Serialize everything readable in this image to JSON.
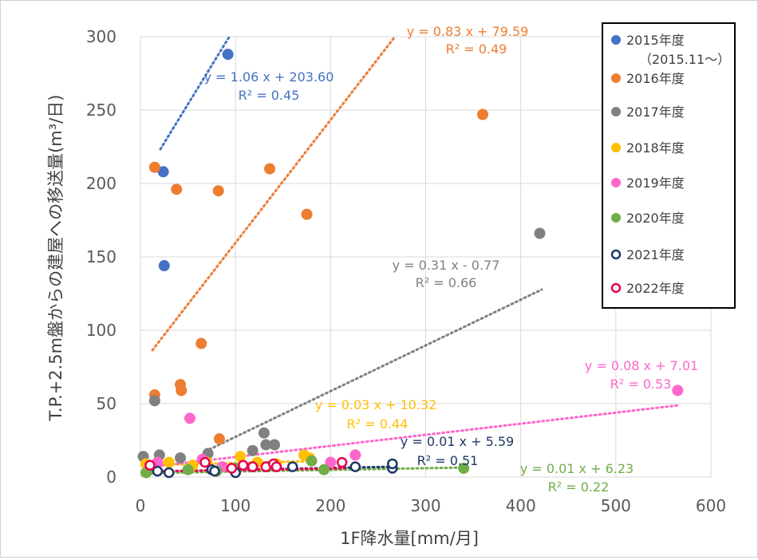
{
  "chart_data": {
    "type": "scatter",
    "xlabel": "1F降水量[mm/月]",
    "ylabel": "T.P.+2.5m盤からの建屋への移送量(m³/日)",
    "xlim": [
      0,
      600
    ],
    "ylim": [
      0,
      300
    ],
    "x_ticks": [
      0,
      100,
      200,
      300,
      400,
      500,
      600
    ],
    "y_ticks": [
      0,
      50,
      100,
      150,
      200,
      250,
      300
    ],
    "grid": true,
    "legend_position": "top-right",
    "series": [
      {
        "name": "2015年度",
        "subtitle": "（2015.11～）",
        "color": "#4472c4",
        "marker": "filled",
        "points": [
          [
            25,
            144
          ],
          [
            24,
            208
          ],
          [
            92,
            288
          ]
        ],
        "trendline": {
          "x": [
            22,
            92
          ],
          "equation": "y = 1.06 x + 203.60",
          "r2": "R² = 0.45"
        }
      },
      {
        "name": "2016年度",
        "color": "#ed7d31",
        "marker": "filled",
        "points": [
          [
            15,
            56
          ],
          [
            15,
            211
          ],
          [
            38,
            196
          ],
          [
            42,
            63
          ],
          [
            43,
            59
          ],
          [
            64,
            91
          ],
          [
            82,
            195
          ],
          [
            83,
            26
          ],
          [
            136,
            210
          ],
          [
            175,
            179
          ],
          [
            360,
            247
          ]
        ],
        "trendline": {
          "x": [
            13,
            270
          ],
          "equation": "y = 0.83 x + 79.59",
          "r2": "R² = 0.49"
        }
      },
      {
        "name": "2017年度",
        "color": "#808080",
        "marker": "filled",
        "points": [
          [
            3,
            14
          ],
          [
            15,
            52
          ],
          [
            20,
            15
          ],
          [
            42,
            13
          ],
          [
            71,
            16
          ],
          [
            118,
            18
          ],
          [
            130,
            30
          ],
          [
            132,
            22
          ],
          [
            141,
            22
          ],
          [
            420,
            166
          ]
        ],
        "trendline": {
          "x": [
            70,
            420
          ],
          "equation": "y = 0.31 x - 0.77",
          "r2": "R² = 0.66"
        }
      },
      {
        "name": "2018年度",
        "color": "#ffc000",
        "marker": "filled",
        "points": [
          [
            6,
            9
          ],
          [
            15,
            7
          ],
          [
            30,
            10
          ],
          [
            55,
            8
          ],
          [
            70,
            10
          ],
          [
            105,
            14
          ],
          [
            123,
            10
          ],
          [
            143,
            9
          ],
          [
            172,
            15
          ],
          [
            178,
            13
          ]
        ],
        "trendline": {
          "x": [
            5,
            180
          ],
          "equation": "y = 0.03 x + 10.32",
          "r2": "R² = 0.44"
        }
      },
      {
        "name": "2019年度",
        "color": "#ff66cc",
        "marker": "filled",
        "points": [
          [
            18,
            10
          ],
          [
            52,
            40
          ],
          [
            65,
            12
          ],
          [
            86,
            7
          ],
          [
            200,
            10
          ],
          [
            226,
            15
          ],
          [
            565,
            59
          ]
        ],
        "trendline": {
          "x": [
            15,
            565
          ],
          "equation": "y = 0.08 x + 7.01",
          "r2": "R² = 0.53"
        }
      },
      {
        "name": "2020年度",
        "color": "#70ad47",
        "marker": "filled",
        "points": [
          [
            6,
            3
          ],
          [
            10,
            5
          ],
          [
            50,
            5
          ],
          [
            80,
            4
          ],
          [
            100,
            6
          ],
          [
            133,
            7
          ],
          [
            180,
            11
          ],
          [
            193,
            5
          ],
          [
            340,
            6
          ]
        ],
        "trendline": {
          "x": [
            5,
            340
          ],
          "equation": "y = 0.01 x + 6.23",
          "r2": "R² = 0.22"
        }
      },
      {
        "name": "2021年度",
        "color": "#1f3864",
        "marker": "hollow",
        "points": [
          [
            18,
            4
          ],
          [
            30,
            3
          ],
          [
            75,
            5
          ],
          [
            78,
            4
          ],
          [
            100,
            3
          ],
          [
            118,
            7
          ],
          [
            160,
            7
          ],
          [
            226,
            7
          ],
          [
            265,
            6
          ],
          [
            265,
            9
          ]
        ],
        "trendline": {
          "x": [
            15,
            265
          ],
          "equation": "y = 0.01 x + 5.59",
          "r2": "R² = 0.51"
        }
      },
      {
        "name": "2022年度",
        "color": "#e8004e",
        "marker": "hollow",
        "points": [
          [
            10,
            8
          ],
          [
            68,
            10
          ],
          [
            96,
            6
          ],
          [
            108,
            8
          ],
          [
            118,
            7
          ],
          [
            132,
            7
          ],
          [
            140,
            9
          ],
          [
            143,
            7
          ],
          [
            212,
            10
          ]
        ],
        "trendline": {
          "x": [
            10,
            212
          ],
          "equation": null,
          "r2": null
        }
      }
    ]
  }
}
